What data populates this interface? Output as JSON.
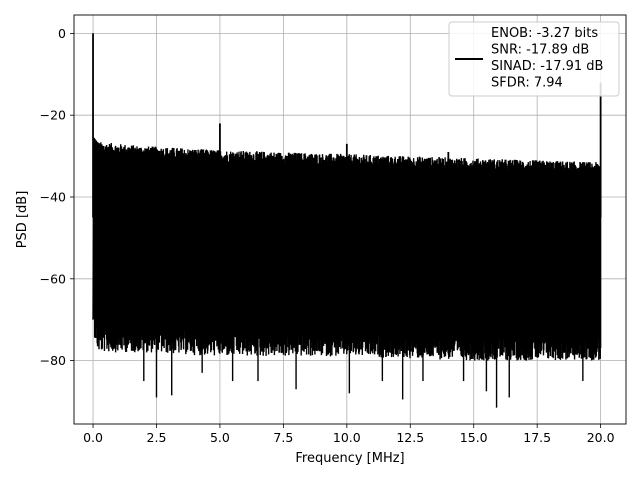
{
  "chart_data": {
    "type": "line",
    "title": "",
    "xlabel": "Frequency [MHz]",
    "ylabel": "PSD [dB]",
    "xlim": [
      -0.75,
      21.0
    ],
    "ylim": [
      -95.5,
      4.5
    ],
    "xticks": [
      0.0,
      2.5,
      5.0,
      7.5,
      10.0,
      12.5,
      15.0,
      17.5,
      20.0
    ],
    "xtick_labels": [
      "0.0",
      "2.5",
      "5.0",
      "7.5",
      "10.0",
      "12.5",
      "15.0",
      "17.5",
      "20.0"
    ],
    "yticks": [
      0,
      -20,
      -40,
      -60,
      -80
    ],
    "ytick_labels": [
      "0",
      "−20",
      "−40",
      "−60",
      "−80"
    ],
    "grid": true,
    "legend_position": "top-right",
    "legend_lines": [
      "ENOB: -3.27 bits",
      "SNR: -17.89 dB",
      "SINAD: -17.91 dB",
      "SFDR: 7.94"
    ],
    "series": [
      {
        "color": "#000000",
        "noise_upper_envelope": {
          "x": [
            0.05,
            0.2,
            2.0,
            5.0,
            10.0,
            15.0,
            20.0
          ],
          "y": [
            -26,
            -28,
            -29,
            -30,
            -31,
            -32,
            -33
          ]
        },
        "noise_lower_envelope": {
          "x": [
            0.05,
            0.2,
            2.0,
            5.0,
            10.0,
            15.0,
            20.0
          ],
          "y": [
            -68,
            -72,
            -72,
            -73,
            -73,
            -74,
            -74
          ]
        },
        "spurs": [
          {
            "x": 0.0,
            "y": 0
          },
          {
            "x": 5.0,
            "y": -22
          },
          {
            "x": 10.0,
            "y": -27
          },
          {
            "x": 14.0,
            "y": -29
          },
          {
            "x": 20.0,
            "y": -12
          }
        ],
        "deep_nulls": [
          {
            "x": 2.0,
            "y": -85
          },
          {
            "x": 2.5,
            "y": -89
          },
          {
            "x": 3.1,
            "y": -88.5
          },
          {
            "x": 4.3,
            "y": -83
          },
          {
            "x": 5.5,
            "y": -85
          },
          {
            "x": 6.5,
            "y": -85
          },
          {
            "x": 8.0,
            "y": -87
          },
          {
            "x": 10.1,
            "y": -88
          },
          {
            "x": 11.4,
            "y": -85
          },
          {
            "x": 12.2,
            "y": -89.5
          },
          {
            "x": 13.0,
            "y": -85
          },
          {
            "x": 14.6,
            "y": -85
          },
          {
            "x": 15.5,
            "y": -87.5
          },
          {
            "x": 15.9,
            "y": -91.5
          },
          {
            "x": 16.4,
            "y": -89
          },
          {
            "x": 19.3,
            "y": -85
          }
        ]
      }
    ]
  }
}
